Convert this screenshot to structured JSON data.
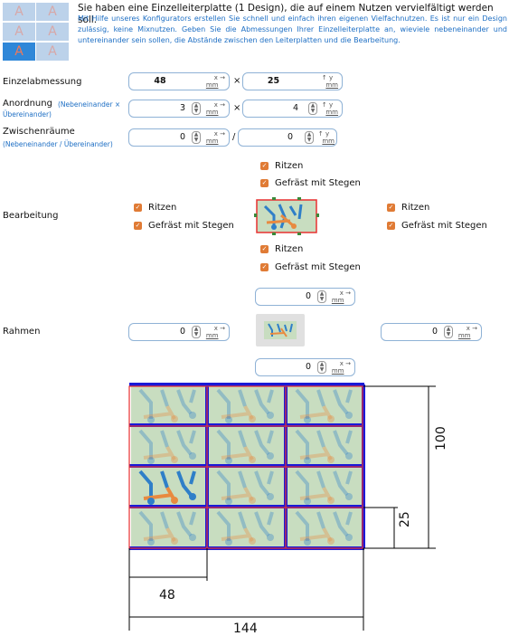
{
  "tile_letter": "A",
  "intro": {
    "title": "Sie haben eine Einzelleiterplatte (1 Design), die auf einem Nutzen vervielfältigt werden soll.",
    "description": "Mit Hilfe unseres Konfigurators erstellen Sie schnell und einfach ihren eigenen Vielfachnutzen. Es ist nur ein Design zulässig, keine Mixnutzen. Geben Sie die Abmessungen Ihrer Einzelleiterplatte an, wieviele nebeneinander und untereinander sein sollen, die Abstände zwischen den Leiterplatten und die Bearbeitung."
  },
  "einzelabmessung": {
    "label": "Einzelabmessung",
    "x_value": "48",
    "y_value": "25",
    "sep": "×"
  },
  "anordnung": {
    "label": "Anordnung",
    "sub": "(Nebeneinander × Übereinander)",
    "x_value": "3",
    "y_value": "4",
    "sep": "×"
  },
  "zwischenraeume": {
    "label": "Zwischenräume",
    "sub": "(Nebeneinander / Übereinander)",
    "x_value": "0",
    "y_value": "0",
    "sep": "/"
  },
  "units": {
    "x": "x",
    "y": "y",
    "mm": "mm"
  },
  "bearbeitung": {
    "label": "Bearbeitung",
    "options": {
      "ritzen": "Ritzen",
      "gefraest": "Gefräst mit Stegen"
    }
  },
  "rahmen": {
    "label": "Rahmen",
    "top": "0",
    "left": "0",
    "right": "0",
    "bottom": "0"
  },
  "panel": {
    "dim_width": "48",
    "dim_total_width": "144",
    "dim_height": "25",
    "dim_total_height": "100"
  },
  "colors": {
    "accent_blue": "#1e6fc4",
    "checkbox_orange": "#e07b35",
    "panel_green": "#c8ddc0",
    "frame_blue": "#1a1ad8",
    "cut_red": "#e83030"
  }
}
